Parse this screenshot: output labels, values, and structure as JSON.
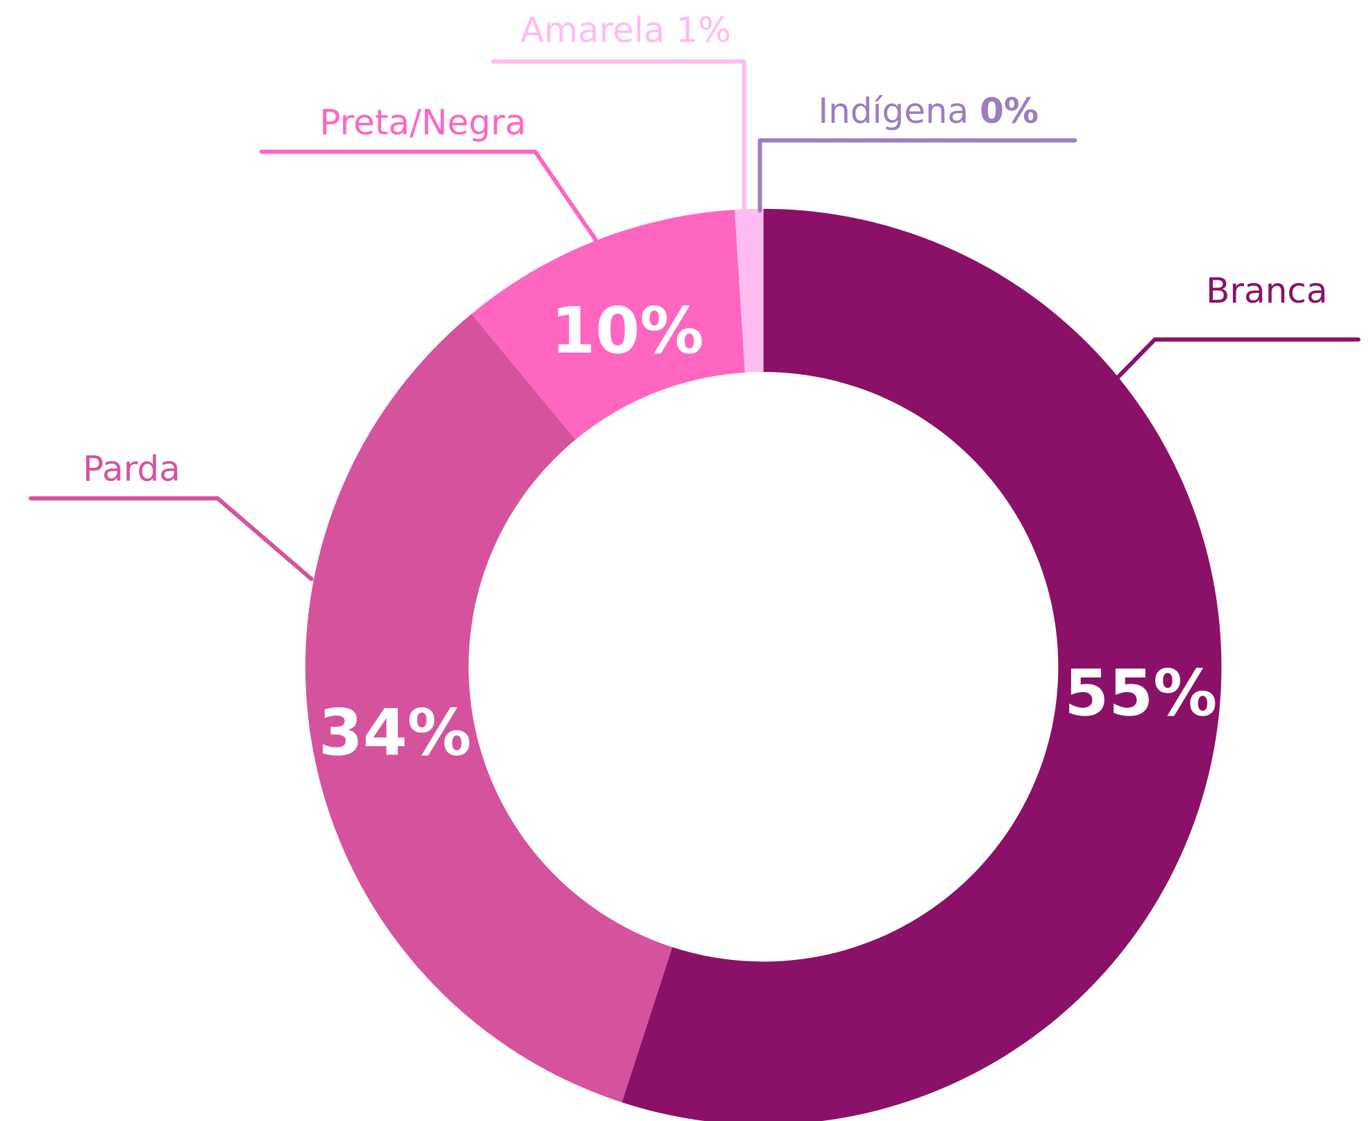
{
  "chart_data": {
    "type": "donut",
    "categories": [
      "Branca",
      "Parda",
      "Preta/Negra",
      "Amarela",
      "Indígena"
    ],
    "values": [
      55,
      34,
      10,
      1,
      0
    ],
    "value_labels": [
      "55%",
      "34%",
      "10%",
      "1%",
      "0%"
    ],
    "colors": [
      "#8b1068",
      "#d5539d",
      "#ff66c0",
      "#ffbcf0",
      "#9b7dc0"
    ]
  }
}
